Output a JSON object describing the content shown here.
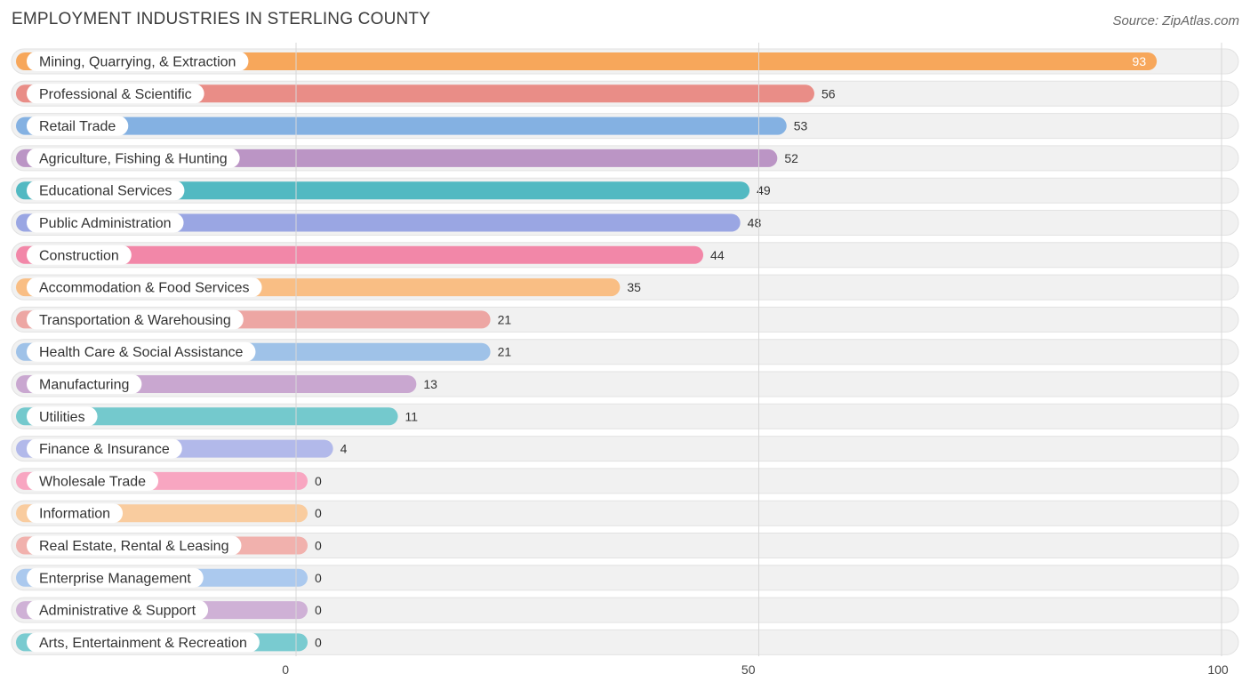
{
  "header": {
    "title": "EMPLOYMENT INDUSTRIES IN STERLING COUNTY",
    "source": "Source: ZipAtlas.com"
  },
  "chart_data": {
    "type": "bar",
    "orientation": "horizontal",
    "title": "EMPLOYMENT INDUSTRIES IN STERLING COUNTY",
    "xlim": [
      0,
      100
    ],
    "ticks": [
      0,
      50,
      100
    ],
    "grid": true,
    "categories": [
      "Mining, Quarrying, & Extraction",
      "Professional & Scientific",
      "Retail Trade",
      "Agriculture, Fishing & Hunting",
      "Educational Services",
      "Public Administration",
      "Construction",
      "Accommodation & Food Services",
      "Transportation & Warehousing",
      "Health Care & Social Assistance",
      "Manufacturing",
      "Utilities",
      "Finance & Insurance",
      "Wholesale Trade",
      "Information",
      "Real Estate, Rental & Leasing",
      "Enterprise Management",
      "Administrative & Support",
      "Arts, Entertainment & Recreation"
    ],
    "values": [
      93,
      56,
      53,
      52,
      49,
      48,
      44,
      35,
      21,
      21,
      13,
      11,
      4,
      0,
      0,
      0,
      0,
      0,
      0
    ],
    "colors": [
      "#f7a75b",
      "#e98d87",
      "#84b1e2",
      "#bb95c5",
      "#52b9c2",
      "#9aa6e3",
      "#f287a8",
      "#f9be84",
      "#eda6a3",
      "#9fc2e8",
      "#c9a7d0",
      "#74c9cd",
      "#b2b9ea",
      "#f8a6c1",
      "#f9cc9f",
      "#f1b1ad",
      "#abc9ee",
      "#cfb1d6",
      "#79cbd0"
    ]
  }
}
